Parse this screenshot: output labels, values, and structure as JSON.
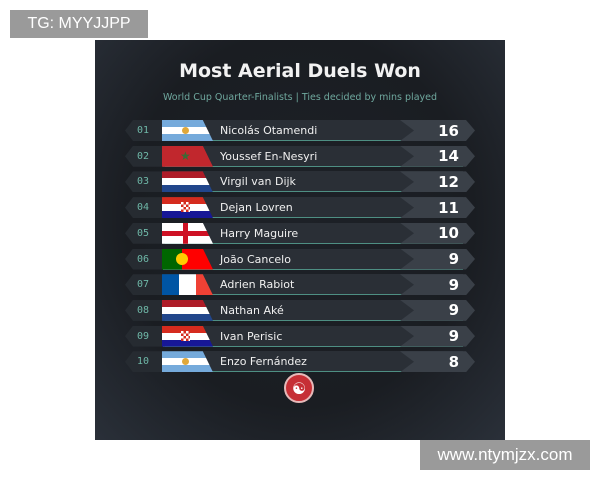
{
  "watermarks": {
    "top_left": "TG: MYYJJPP",
    "bottom_right": "www.ntymjzx.com"
  },
  "title": "Most Aerial Duels Won",
  "subtitle": "World Cup Quarter-Finalists | Ties decided by mins played",
  "colors": {
    "accent": "#6fb8a8",
    "background": "#1a1d22",
    "logo": "#c62f35"
  },
  "rows": [
    {
      "rank": "01",
      "player": "Nicolás Otamendi",
      "country": "argentina",
      "value": "16"
    },
    {
      "rank": "02",
      "player": "Youssef En-Nesyri",
      "country": "morocco",
      "value": "14"
    },
    {
      "rank": "03",
      "player": "Virgil van Dijk",
      "country": "netherlands",
      "value": "12"
    },
    {
      "rank": "04",
      "player": "Dejan Lovren",
      "country": "croatia",
      "value": "11"
    },
    {
      "rank": "05",
      "player": "Harry Maguire",
      "country": "england",
      "value": "10"
    },
    {
      "rank": "06",
      "player": "João Cancelo",
      "country": "portugal",
      "value": "9"
    },
    {
      "rank": "07",
      "player": "Adrien Rabiot",
      "country": "france",
      "value": "9"
    },
    {
      "rank": "08",
      "player": "Nathan Aké",
      "country": "netherlands",
      "value": "9"
    },
    {
      "rank": "09",
      "player": "Ivan Perisic",
      "country": "croatia",
      "value": "9"
    },
    {
      "rank": "10",
      "player": "Enzo Fernández",
      "country": "argentina",
      "value": "8"
    }
  ]
}
